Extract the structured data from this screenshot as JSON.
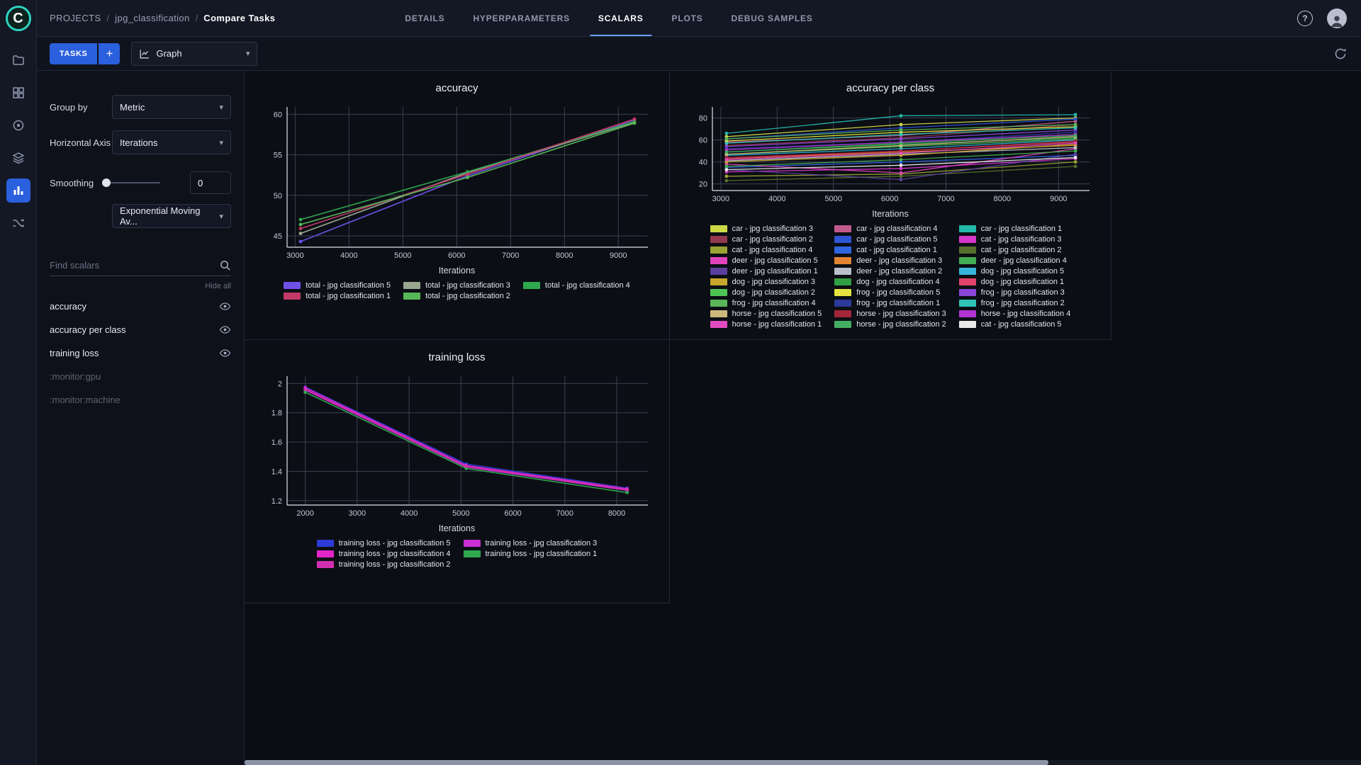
{
  "header": {
    "breadcrumb": {
      "root": "PROJECTS",
      "separator": "/",
      "project": "jpg_classification",
      "page": "Compare Tasks"
    },
    "tabs": [
      {
        "label": "DETAILS",
        "active": false
      },
      {
        "label": "HYPERPARAMETERS",
        "active": false
      },
      {
        "label": "SCALARS",
        "active": true
      },
      {
        "label": "PLOTS",
        "active": false
      },
      {
        "label": "DEBUG SAMPLES",
        "active": false
      }
    ],
    "icons": [
      "help-icon",
      "avatar"
    ]
  },
  "rail_icons": [
    "projects-icon",
    "datasets-icon",
    "models-icon",
    "reports-icon",
    "experiments-icon",
    "pipelines-icon"
  ],
  "toolbar": {
    "tasks_label": "TASKS",
    "add_label": "+",
    "view_value": "Graph",
    "icons": [
      "graph-icon",
      "auto-refresh-icon"
    ]
  },
  "settings_panel": {
    "group_by_label": "Group by",
    "group_by_value": "Metric",
    "horizontal_axis_label": "Horizontal Axis",
    "horizontal_axis_value": "Iterations",
    "smoothing_label": "Smoothing",
    "smoothing_value": "0",
    "smoothing_type_value": "Exponential Moving Av...",
    "search_placeholder": "Find scalars",
    "hide_all_label": "Hide all",
    "metrics": [
      {
        "label": "accuracy",
        "enabled": true
      },
      {
        "label": "accuracy per class",
        "enabled": true
      },
      {
        "label": "training loss",
        "enabled": true
      },
      {
        "label": ":monitor:gpu",
        "enabled": false
      },
      {
        "label": ":monitor:machine",
        "enabled": false
      }
    ]
  },
  "chart_data": [
    {
      "id": "accuracy",
      "type": "line",
      "title": "accuracy",
      "xlabel": "Iterations",
      "x": [
        3100,
        6200,
        9300
      ],
      "xlim": [
        2850,
        9550
      ],
      "ylim": [
        43.6,
        60.9
      ],
      "xticks": [
        3000,
        4000,
        5000,
        6000,
        7000,
        8000,
        9000
      ],
      "yticks": [
        45,
        50,
        55,
        60
      ],
      "legend_columns": 3,
      "series": [
        {
          "name": "total - jpg classification 5",
          "color": "#6e52e8",
          "values": [
            44.3,
            52.4,
            59.3
          ]
        },
        {
          "name": "total - jpg classification 3",
          "color": "#9aa890",
          "values": [
            45.3,
            52.8,
            59.0
          ]
        },
        {
          "name": "total - jpg classification 4",
          "color": "#2fa84f",
          "values": [
            47.0,
            52.9,
            59.1
          ]
        },
        {
          "name": "total - jpg classification 1",
          "color": "#c23a68",
          "values": [
            45.9,
            52.6,
            59.4
          ]
        },
        {
          "name": "total - jpg classification 2",
          "color": "#57b657",
          "values": [
            46.4,
            52.2,
            58.9
          ]
        }
      ]
    },
    {
      "id": "accuracy-per-class",
      "type": "line",
      "title": "accuracy per class",
      "xlabel": "Iterations",
      "x": [
        3100,
        6200,
        9300
      ],
      "xlim": [
        2850,
        9550
      ],
      "ylim": [
        14,
        90
      ],
      "xticks": [
        3000,
        4000,
        5000,
        6000,
        7000,
        8000,
        9000
      ],
      "yticks": [
        20,
        40,
        60,
        80
      ],
      "legend_columns": 3,
      "series": [
        {
          "name": "car - jpg classification 3",
          "color": "#cdd945",
          "values": [
            63,
            74,
            80
          ]
        },
        {
          "name": "car - jpg classification 4",
          "color": "#c05a8c",
          "values": [
            58,
            64,
            77
          ]
        },
        {
          "name": "car - jpg classification 1",
          "color": "#23b8ab",
          "values": [
            66,
            82,
            83
          ]
        },
        {
          "name": "car - jpg classification 2",
          "color": "#93384e",
          "values": [
            55,
            62,
            74
          ]
        },
        {
          "name": "car - jpg classification 5",
          "color": "#2e55d4",
          "values": [
            61,
            71,
            79
          ]
        },
        {
          "name": "cat - jpg classification 3",
          "color": "#d636c9",
          "values": [
            31,
            34,
            43
          ]
        },
        {
          "name": "cat - jpg classification 4",
          "color": "#98a233",
          "values": [
            27,
            29,
            40
          ]
        },
        {
          "name": "cat - jpg classification 1",
          "color": "#2f63e0",
          "values": [
            35,
            40,
            46
          ]
        },
        {
          "name": "cat - jpg classification 2",
          "color": "#55702c",
          "values": [
            23,
            27,
            36
          ]
        },
        {
          "name": "deer - jpg classification 5",
          "color": "#e043bd",
          "values": [
            38,
            30,
            52
          ]
        },
        {
          "name": "deer - jpg classification 3",
          "color": "#e2842f",
          "values": [
            43,
            49,
            55
          ]
        },
        {
          "name": "deer - jpg classification 4",
          "color": "#43ad52",
          "values": [
            36,
            42,
            50
          ]
        },
        {
          "name": "deer - jpg classification 1",
          "color": "#5a3f9e",
          "values": [
            33,
            24,
            47
          ]
        },
        {
          "name": "deer - jpg classification 2",
          "color": "#b9c0cc",
          "values": [
            41,
            47,
            53
          ]
        },
        {
          "name": "dog - jpg classification 5",
          "color": "#35b5d9",
          "values": [
            46,
            52,
            60
          ]
        },
        {
          "name": "dog - jpg classification 3",
          "color": "#c8a62b",
          "values": [
            40,
            46,
            56
          ]
        },
        {
          "name": "dog - jpg classification 4",
          "color": "#2f9e44",
          "values": [
            49,
            56,
            62
          ]
        },
        {
          "name": "dog - jpg classification 1",
          "color": "#e04468",
          "values": [
            43,
            50,
            58
          ]
        },
        {
          "name": "dog - jpg classification 2",
          "color": "#4ec455",
          "values": [
            47,
            54,
            61
          ]
        },
        {
          "name": "frog - jpg classification 5",
          "color": "#e6e340",
          "values": [
            59,
            67,
            72
          ]
        },
        {
          "name": "frog - jpg classification 3",
          "color": "#8a46d8",
          "values": [
            54,
            61,
            69
          ]
        },
        {
          "name": "frog - jpg classification 4",
          "color": "#59b659",
          "values": [
            61,
            69,
            74
          ]
        },
        {
          "name": "frog - jpg classification 1",
          "color": "#2b3a9b",
          "values": [
            52,
            58,
            67
          ]
        },
        {
          "name": "frog - jpg classification 2",
          "color": "#2ec4b6",
          "values": [
            57,
            65,
            71
          ]
        },
        {
          "name": "horse - jpg classification 5",
          "color": "#cdb97e",
          "values": [
            47,
            55,
            63
          ]
        },
        {
          "name": "horse - jpg classification 3",
          "color": "#a32638",
          "values": [
            44,
            50,
            59
          ]
        },
        {
          "name": "horse - jpg classification 4",
          "color": "#b133d2",
          "values": [
            51,
            58,
            65
          ]
        },
        {
          "name": "horse - jpg classification 1",
          "color": "#e24bc0",
          "values": [
            42,
            48,
            57
          ]
        },
        {
          "name": "horse - jpg classification 2",
          "color": "#43ae62",
          "values": [
            49,
            57,
            64
          ]
        },
        {
          "name": "cat - jpg classification 5",
          "color": "#e9e9e9",
          "values": [
            33,
            37,
            44
          ]
        }
      ]
    },
    {
      "id": "training-loss",
      "type": "line",
      "title": "training loss",
      "xlabel": "Iterations",
      "x": [
        2000,
        5100,
        8200
      ],
      "xlim": [
        1650,
        8600
      ],
      "ylim": [
        1.17,
        2.05
      ],
      "xticks": [
        2000,
        3000,
        4000,
        5000,
        6000,
        7000,
        8000
      ],
      "yticks": [
        1.2,
        1.4,
        1.6,
        1.8,
        2
      ],
      "legend_columns": 2,
      "series": [
        {
          "name": "training loss - jpg classification 5",
          "color": "#2f3bd8",
          "values": [
            1.975,
            1.45,
            1.285
          ]
        },
        {
          "name": "training loss - jpg classification 3",
          "color": "#c92fd4",
          "values": [
            1.955,
            1.43,
            1.27
          ]
        },
        {
          "name": "training loss - jpg classification 4",
          "color": "#e225c8",
          "values": [
            1.97,
            1.44,
            1.28
          ]
        },
        {
          "name": "training loss - jpg classification 1",
          "color": "#2fa84f",
          "values": [
            1.94,
            1.42,
            1.255
          ]
        },
        {
          "name": "training loss - jpg classification 2",
          "color": "#d12fb0",
          "values": [
            1.96,
            1.435,
            1.275
          ]
        }
      ]
    }
  ]
}
